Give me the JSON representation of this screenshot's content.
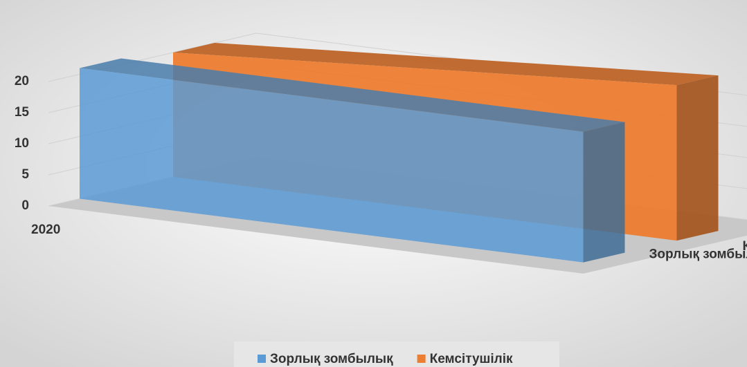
{
  "chart_data": {
    "type": "area3d",
    "categories": [
      "2020",
      null
    ],
    "series": [
      {
        "name": "Зорлық зомбылық",
        "color": "#5b9bd5",
        "values": [
          21,
          21
        ]
      },
      {
        "name": "Кемсітушілік",
        "color": "#ed7d31",
        "values": [
          20,
          25
        ]
      }
    ],
    "ylim": [
      0,
      25
    ],
    "yticks": [
      0,
      5,
      10,
      15,
      20
    ],
    "grid": true,
    "legend": "bottom"
  }
}
